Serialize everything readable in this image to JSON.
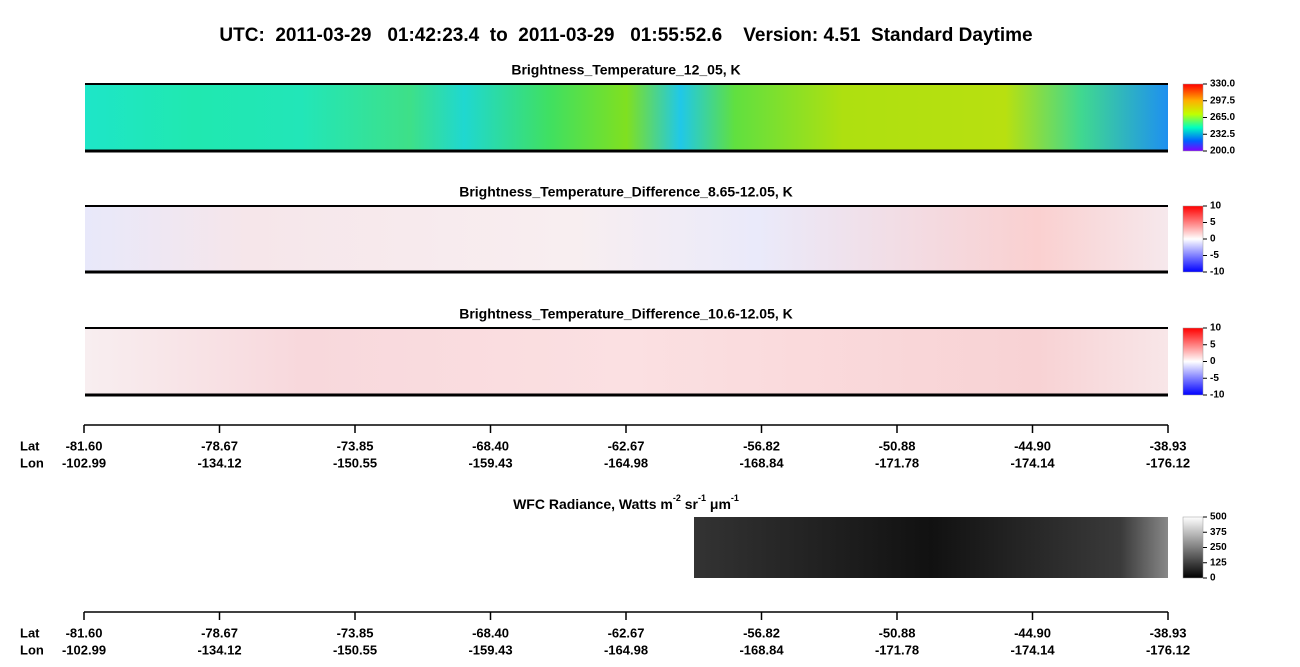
{
  "header": {
    "title": "UTC:  2011-03-29   01:42:23.4  to  2011-03-29   01:55:52.6    Version: 4.51  Standard Daytime"
  },
  "panels": [
    {
      "title": "Brightness_Temperature_12_05, K",
      "colorbar": [
        "330.0",
        "297.5",
        "265.0",
        "232.5",
        "200.0"
      ]
    },
    {
      "title": "Brightness_Temperature_Difference_8.65-12.05, K",
      "colorbar": [
        "10",
        "5",
        "0",
        "-5",
        "-10"
      ]
    },
    {
      "title": "Brightness_Temperature_Difference_10.6-12.05, K",
      "colorbar": [
        "10",
        "5",
        "0",
        "-5",
        "-10"
      ]
    },
    {
      "title_parts": [
        "WFC Radiance, Watts m",
        "-2",
        " sr",
        "-1",
        " μm",
        "-1"
      ],
      "colorbar": [
        "500",
        "375",
        "250",
        "125",
        "0"
      ]
    }
  ],
  "axes": [
    {
      "lat_label": "Lat",
      "lon_label": "Lon",
      "lat": [
        "-81.60",
        "-78.67",
        "-73.85",
        "-68.40",
        "-62.67",
        "-56.82",
        "-50.88",
        "-44.90",
        "-38.93"
      ],
      "lon": [
        "-102.99",
        "-134.12",
        "-150.55",
        "-159.43",
        "-164.98",
        "-168.84",
        "-171.78",
        "-174.14",
        "-176.12"
      ]
    },
    {
      "lat_label": "Lat",
      "lon_label": "Lon",
      "lat": [
        "-81.60",
        "-78.67",
        "-73.85",
        "-68.40",
        "-62.67",
        "-56.82",
        "-50.88",
        "-44.90",
        "-38.93"
      ],
      "lon": [
        "-102.99",
        "-134.12",
        "-150.55",
        "-159.43",
        "-164.98",
        "-168.84",
        "-171.78",
        "-174.14",
        "-176.12"
      ]
    }
  ]
}
